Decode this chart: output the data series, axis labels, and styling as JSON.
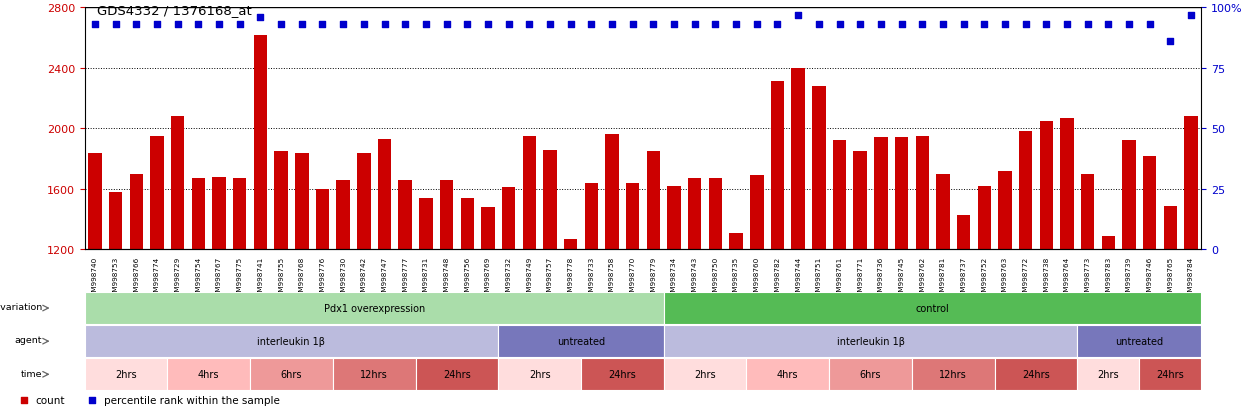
{
  "title": "GDS4332 / 1376168_at",
  "samples": [
    "GSM998740",
    "GSM998753",
    "GSM998766",
    "GSM998774",
    "GSM998729",
    "GSM998754",
    "GSM998767",
    "GSM998775",
    "GSM998741",
    "GSM998755",
    "GSM998768",
    "GSM998776",
    "GSM998730",
    "GSM998742",
    "GSM998747",
    "GSM998777",
    "GSM998731",
    "GSM998748",
    "GSM998756",
    "GSM998769",
    "GSM998732",
    "GSM998749",
    "GSM998757",
    "GSM998778",
    "GSM998733",
    "GSM998758",
    "GSM998770",
    "GSM998779",
    "GSM998734",
    "GSM998743",
    "GSM998750",
    "GSM998735",
    "GSM998760",
    "GSM998782",
    "GSM998744",
    "GSM998751",
    "GSM998761",
    "GSM998771",
    "GSM998736",
    "GSM998745",
    "GSM998762",
    "GSM998781",
    "GSM998737",
    "GSM998752",
    "GSM998763",
    "GSM998772",
    "GSM998738",
    "GSM998764",
    "GSM998773",
    "GSM998783",
    "GSM998739",
    "GSM998746",
    "GSM998765",
    "GSM998784"
  ],
  "counts": [
    1840,
    1580,
    1700,
    1950,
    2080,
    1670,
    1680,
    1670,
    2620,
    1850,
    1840,
    1600,
    1660,
    1840,
    1930,
    1660,
    1540,
    1660,
    1540,
    1480,
    1610,
    1950,
    1860,
    1270,
    1640,
    1960,
    1640,
    1850,
    1620,
    1670,
    1670,
    1310,
    1690,
    2310,
    2400,
    2280,
    1920,
    1850,
    1940,
    1940,
    1950,
    1700,
    1430,
    1620,
    1720,
    1980,
    2050,
    2070,
    1700,
    1290,
    1920,
    1820,
    1490,
    2080
  ],
  "percentile": [
    93,
    93,
    93,
    93,
    93,
    93,
    93,
    93,
    96,
    93,
    93,
    93,
    93,
    93,
    93,
    93,
    93,
    93,
    93,
    93,
    93,
    93,
    93,
    93,
    93,
    93,
    93,
    93,
    93,
    93,
    93,
    93,
    93,
    93,
    97,
    93,
    93,
    93,
    93,
    93,
    93,
    93,
    93,
    93,
    93,
    93,
    93,
    93,
    93,
    93,
    93,
    93,
    86,
    97
  ],
  "ylim_left": [
    1200,
    2800
  ],
  "ylim_right": [
    0,
    100
  ],
  "yticks_left": [
    1200,
    1600,
    2000,
    2400,
    2800
  ],
  "yticks_right": [
    0,
    25,
    50,
    75,
    100
  ],
  "bar_color": "#cc0000",
  "dot_color": "#0000cc",
  "bg_color": "#ffffff",
  "genotype_groups": [
    {
      "label": "Pdx1 overexpression",
      "start": 0,
      "end": 28,
      "color": "#aaddaa"
    },
    {
      "label": "control",
      "start": 28,
      "end": 54,
      "color": "#55bb55"
    }
  ],
  "agent_groups": [
    {
      "label": "interleukin 1β",
      "start": 0,
      "end": 20,
      "color": "#bbbbdd"
    },
    {
      "label": "untreated",
      "start": 20,
      "end": 28,
      "color": "#7777bb"
    },
    {
      "label": "interleukin 1β",
      "start": 28,
      "end": 48,
      "color": "#bbbbdd"
    },
    {
      "label": "untreated",
      "start": 48,
      "end": 54,
      "color": "#7777bb"
    }
  ],
  "time_groups": [
    {
      "label": "2hrs",
      "start": 0,
      "end": 4,
      "color": "#ffdddd"
    },
    {
      "label": "4hrs",
      "start": 4,
      "end": 8,
      "color": "#ffbbbb"
    },
    {
      "label": "6hrs",
      "start": 8,
      "end": 12,
      "color": "#ee9999"
    },
    {
      "label": "12hrs",
      "start": 12,
      "end": 16,
      "color": "#dd7777"
    },
    {
      "label": "24hrs",
      "start": 16,
      "end": 20,
      "color": "#cc5555"
    },
    {
      "label": "2hrs",
      "start": 20,
      "end": 24,
      "color": "#ffdddd"
    },
    {
      "label": "24hrs",
      "start": 24,
      "end": 28,
      "color": "#cc5555"
    },
    {
      "label": "2hrs",
      "start": 28,
      "end": 32,
      "color": "#ffdddd"
    },
    {
      "label": "4hrs",
      "start": 32,
      "end": 36,
      "color": "#ffbbbb"
    },
    {
      "label": "6hrs",
      "start": 36,
      "end": 40,
      "color": "#ee9999"
    },
    {
      "label": "12hrs",
      "start": 40,
      "end": 44,
      "color": "#dd7777"
    },
    {
      "label": "24hrs",
      "start": 44,
      "end": 48,
      "color": "#cc5555"
    },
    {
      "label": "2hrs",
      "start": 48,
      "end": 51,
      "color": "#ffdddd"
    },
    {
      "label": "24hrs",
      "start": 51,
      "end": 54,
      "color": "#cc5555"
    }
  ],
  "legend_count_label": "count",
  "legend_pct_label": "percentile rank within the sample"
}
